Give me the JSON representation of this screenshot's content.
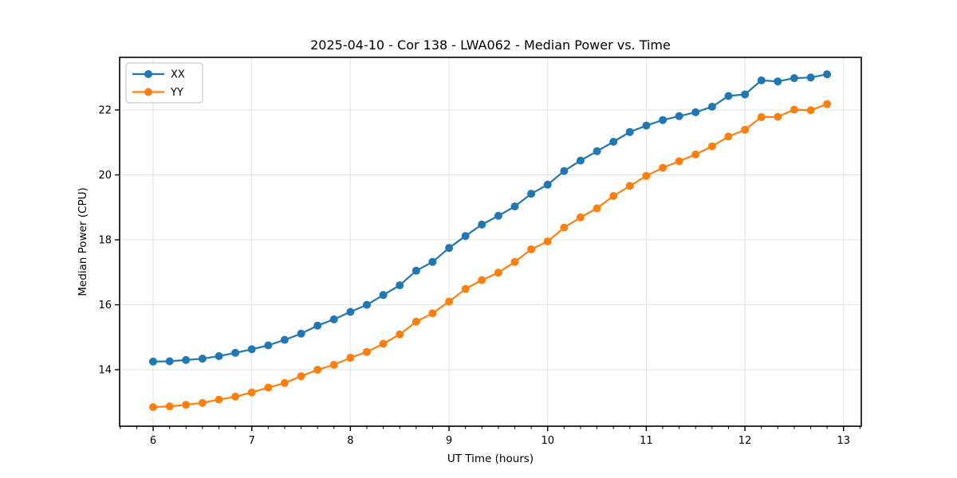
{
  "chart_data": {
    "type": "line",
    "title": "2025-04-10 - Cor 138 - LWA062 - Median Power vs. Time",
    "xlabel": "UT Time (hours)",
    "ylabel": "Median Power (CPU)",
    "xlim": [
      5.66,
      13.18
    ],
    "ylim": [
      12.26,
      23.62
    ],
    "x_major_ticks": [
      6,
      7,
      8,
      9,
      10,
      11,
      12,
      13
    ],
    "y_major_ticks": [
      14,
      16,
      18,
      20,
      22
    ],
    "x_minor_step": 0.1666667,
    "grid": true,
    "legend_position": "upper left",
    "x": [
      6.0,
      6.167,
      6.333,
      6.5,
      6.667,
      6.833,
      7.0,
      7.167,
      7.333,
      7.5,
      7.667,
      7.833,
      8.0,
      8.167,
      8.333,
      8.5,
      8.667,
      8.833,
      9.0,
      9.167,
      9.333,
      9.5,
      9.667,
      9.833,
      10.0,
      10.167,
      10.333,
      10.5,
      10.667,
      10.833,
      11.0,
      11.167,
      11.333,
      11.5,
      11.667,
      11.833,
      12.0,
      12.167,
      12.333,
      12.5,
      12.667,
      12.833
    ],
    "series": [
      {
        "name": "XX",
        "color": "#1f77b4",
        "values": [
          14.25,
          14.26,
          14.3,
          14.34,
          14.42,
          14.52,
          14.63,
          14.75,
          14.92,
          15.11,
          15.36,
          15.55,
          15.78,
          16.0,
          16.3,
          16.6,
          17.05,
          17.32,
          17.75,
          18.12,
          18.47,
          18.74,
          19.03,
          19.42,
          19.7,
          20.12,
          20.44,
          20.73,
          21.02,
          21.32,
          21.52,
          21.69,
          21.81,
          21.93,
          22.1,
          22.43,
          22.48,
          22.91,
          22.88,
          22.98,
          23.0,
          23.1
        ]
      },
      {
        "name": "YY",
        "color": "#ff7f0e",
        "values": [
          12.85,
          12.87,
          12.92,
          12.98,
          13.08,
          13.17,
          13.3,
          13.45,
          13.59,
          13.8,
          14.0,
          14.15,
          14.37,
          14.55,
          14.8,
          15.09,
          15.48,
          15.74,
          16.1,
          16.49,
          16.76,
          16.99,
          17.32,
          17.71,
          17.95,
          18.38,
          18.69,
          18.97,
          19.35,
          19.66,
          19.97,
          20.22,
          20.42,
          20.63,
          20.88,
          21.18,
          21.39,
          21.78,
          21.79,
          22.01,
          21.99,
          22.18
        ]
      }
    ],
    "style": {
      "grid_color": "#e3e3e3",
      "spine_color": "#000000",
      "background": "#ffffff",
      "marker_radius": 5,
      "line_width": 2.2
    }
  }
}
